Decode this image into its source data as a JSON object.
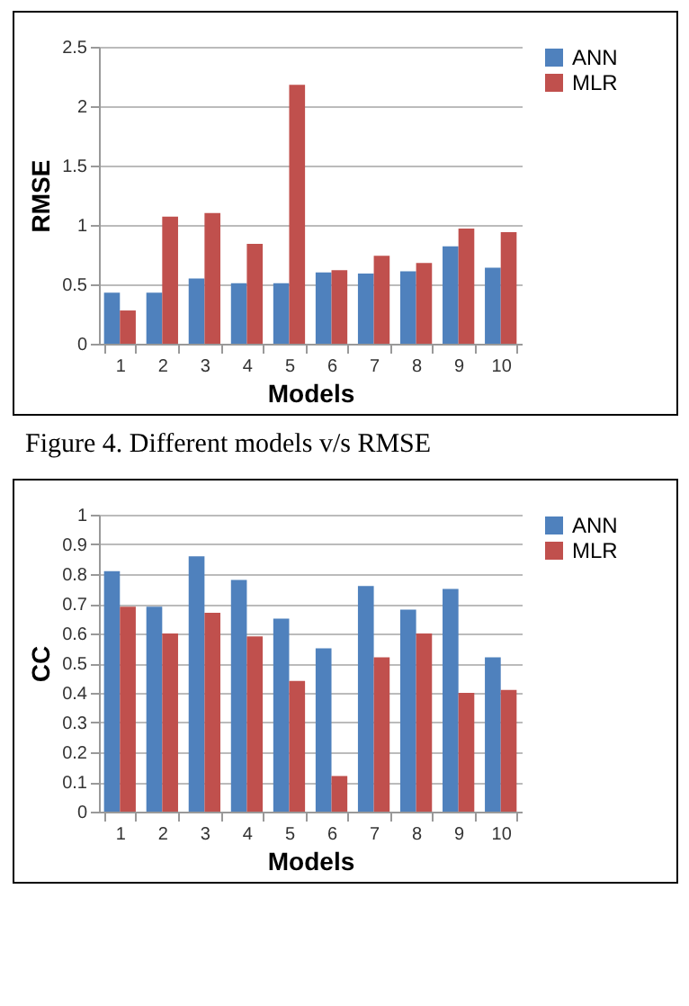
{
  "chart_data": [
    {
      "type": "bar",
      "xlabel": "Models",
      "ylabel": "RMSE",
      "categories": [
        "1",
        "2",
        "3",
        "4",
        "5",
        "6",
        "7",
        "8",
        "9",
        "10"
      ],
      "series": [
        {
          "name": "ANN",
          "color": "#4f81bd",
          "values": [
            0.43,
            0.43,
            0.55,
            0.51,
            0.51,
            0.6,
            0.59,
            0.61,
            0.82,
            0.64
          ]
        },
        {
          "name": "MLR",
          "color": "#c0504d",
          "values": [
            0.28,
            1.07,
            1.1,
            0.84,
            2.18,
            0.62,
            0.74,
            0.68,
            0.97,
            0.94
          ]
        }
      ],
      "ylim": [
        0,
        2.5
      ],
      "yticks": [
        0,
        0.5,
        1,
        1.5,
        2,
        2.5
      ],
      "grid": "y",
      "legend": "right",
      "annotations": [
        "Figure 4. Different models v/s RMSE"
      ]
    },
    {
      "type": "bar",
      "xlabel": "Models",
      "ylabel": "CC",
      "categories": [
        "1",
        "2",
        "3",
        "4",
        "5",
        "6",
        "7",
        "8",
        "9",
        "10"
      ],
      "series": [
        {
          "name": "ANN",
          "color": "#4f81bd",
          "values": [
            0.81,
            0.69,
            0.86,
            0.78,
            0.65,
            0.55,
            0.76,
            0.68,
            0.75,
            0.52
          ]
        },
        {
          "name": "MLR",
          "color": "#c0504d",
          "values": [
            0.69,
            0.6,
            0.67,
            0.59,
            0.44,
            0.12,
            0.52,
            0.6,
            0.4,
            0.41
          ]
        }
      ],
      "ylim": [
        0,
        1
      ],
      "yticks": [
        0,
        0.1,
        0.2,
        0.3,
        0.4,
        0.5,
        0.6,
        0.7,
        0.8,
        0.9,
        1
      ],
      "grid": "y",
      "legend": "right"
    }
  ]
}
